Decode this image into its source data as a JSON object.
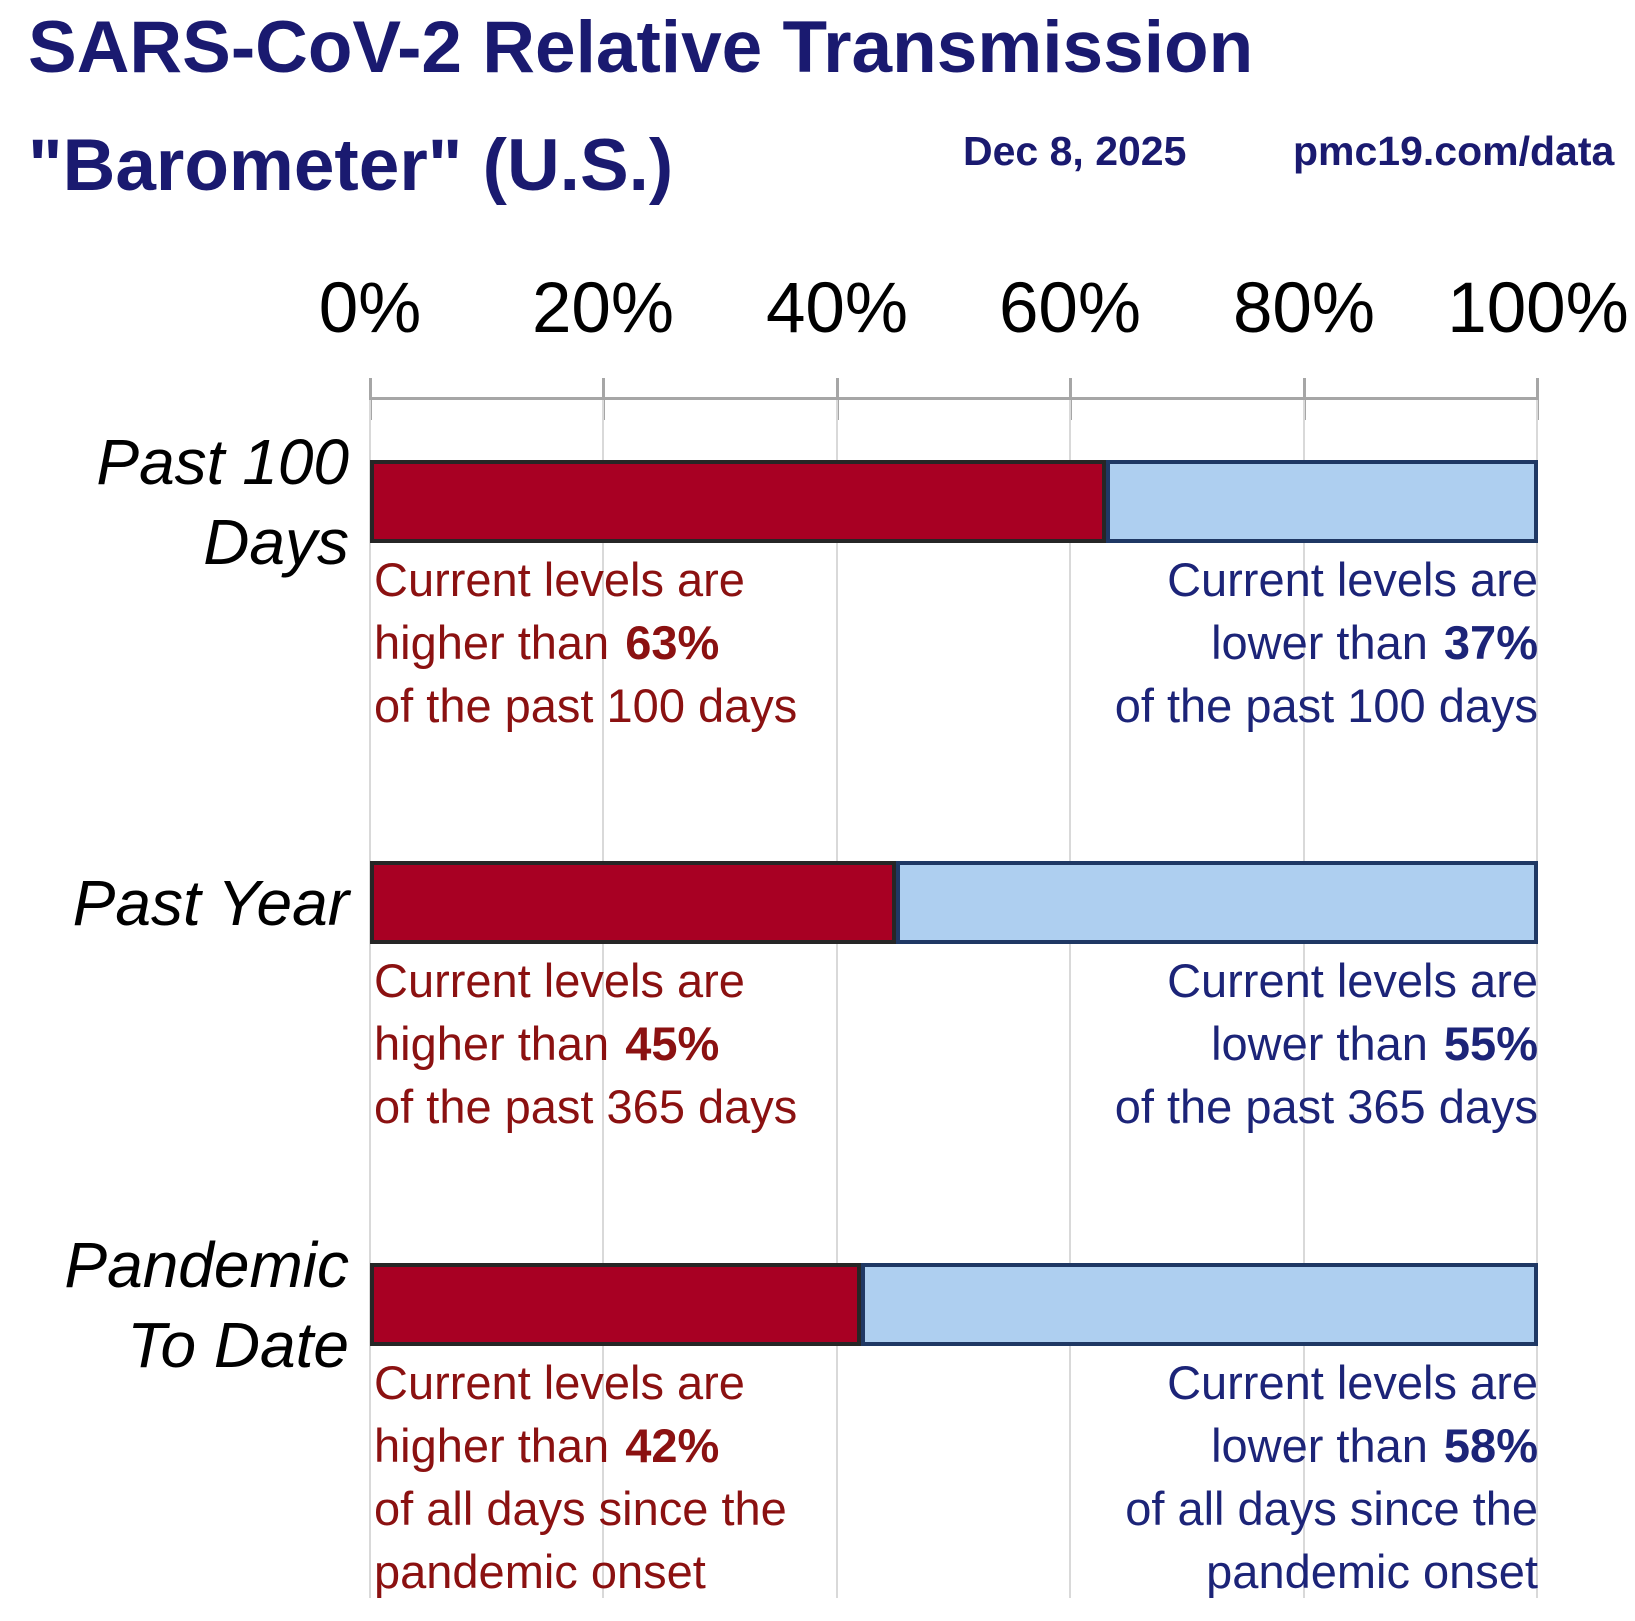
{
  "title": {
    "line1": "SARS-CoV-2 Relative Transmission",
    "line2": "\"Barometer\" (U.S.)"
  },
  "meta": {
    "date": "Dec 8, 2025",
    "source": "pmc19.com/data"
  },
  "axis": {
    "ticks": [
      "0%",
      "20%",
      "40%",
      "60%",
      "80%",
      "100%"
    ]
  },
  "colors": {
    "title_navy": "#1A1A70",
    "annotation_navy": "#1C2478",
    "annotation_red": "#8B1111",
    "bar_red": "#A80023",
    "bar_red_border": "#262626",
    "bar_blue": "#AECFF0",
    "bar_blue_border": "#1F3864",
    "axis_gray": "#A6A6A6",
    "gridline_gray": "#D9D9D9"
  },
  "rows": [
    {
      "label": [
        "Past 100",
        "Days"
      ],
      "left": [
        "Current levels are",
        "higher than",
        "63%",
        "of the past 100 days",
        ""
      ],
      "right": [
        "Current levels are",
        "lower than",
        "37%",
        "of the past 100 days",
        ""
      ]
    },
    {
      "label": [
        "Past Year",
        ""
      ],
      "left": [
        "Current levels are",
        "higher than",
        "45%",
        "of the past 365 days",
        ""
      ],
      "right": [
        "Current levels are",
        "lower than",
        "55%",
        "of the past 365 days",
        ""
      ]
    },
    {
      "label": [
        "Pandemic",
        "To Date"
      ],
      "left": [
        "Current levels are",
        "higher than",
        "42%",
        "of all days since the",
        "pandemic onset"
      ],
      "right": [
        "Current levels are",
        "lower than",
        "58%",
        "of all days since the",
        "pandemic onset"
      ]
    }
  ],
  "chart_data": {
    "type": "bar",
    "orientation": "horizontal-stacked",
    "title": "SARS-CoV-2 Relative Transmission \"Barometer\" (U.S.)",
    "date": "Dec 8, 2025",
    "source": "pmc19.com/data",
    "categories": [
      "Past 100 Days",
      "Past Year",
      "Pandemic To Date"
    ],
    "series": [
      {
        "name": "Current levels are higher than (percent of period days)",
        "values": [
          63,
          45,
          42
        ],
        "color": "#A80023"
      },
      {
        "name": "Current levels are lower than (percent of period days)",
        "values": [
          37,
          55,
          58
        ],
        "color": "#AECFF0"
      }
    ],
    "xlabel": "",
    "ylabel": "",
    "xlim": [
      0,
      100
    ],
    "x_tick_labels": [
      "0%",
      "20%",
      "40%",
      "60%",
      "80%",
      "100%"
    ],
    "grid": true,
    "legend": false,
    "annotations": [
      "Current levels are higher than 63% of the past 100 days",
      "Current levels are lower than 37% of the past 100 days",
      "Current levels are higher than 45% of the past 365 days",
      "Current levels are lower than 55% of the past 365 days",
      "Current levels are higher than 42% of all days since the pandemic onset",
      "Current levels are lower than 58% of all days since the pandemic onset"
    ]
  }
}
